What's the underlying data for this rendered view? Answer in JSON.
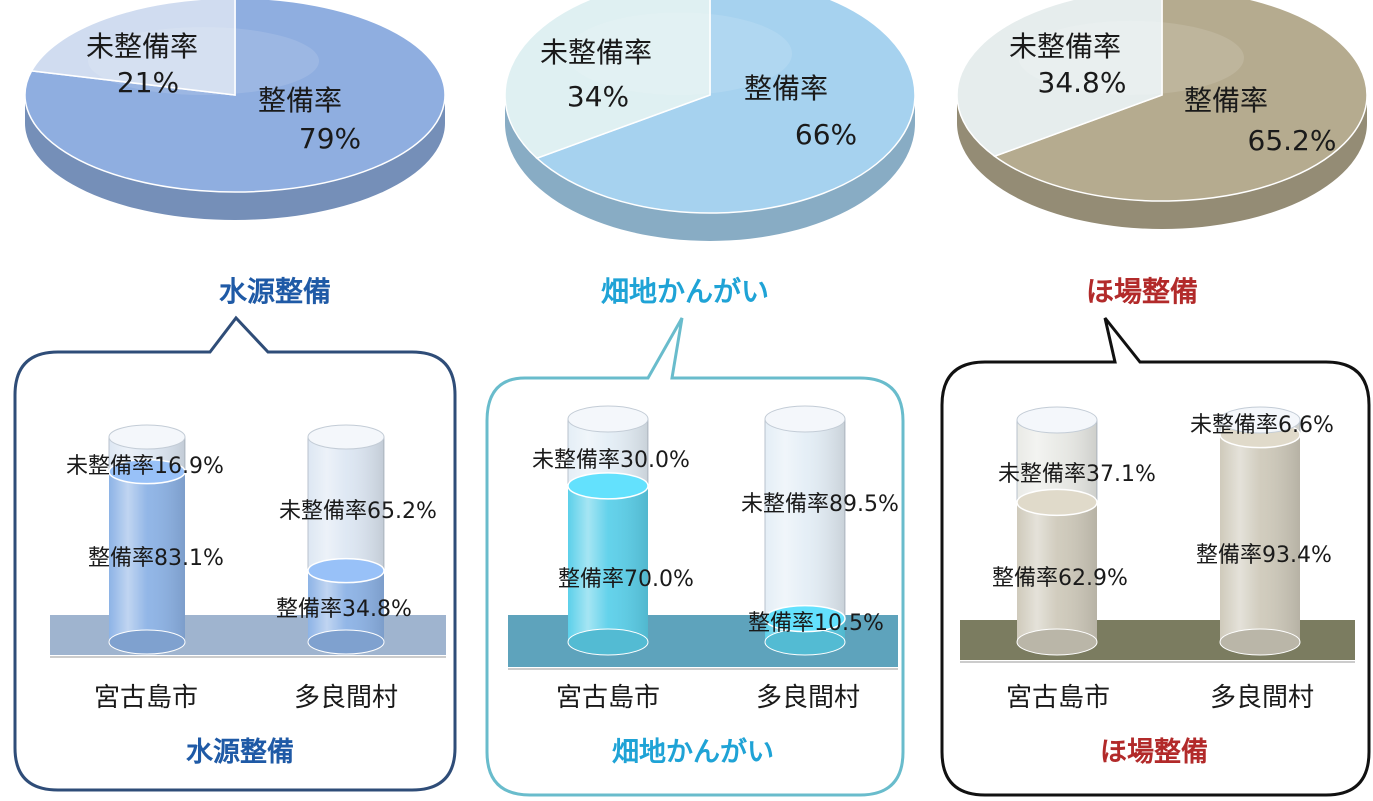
{
  "chart_data": [
    {
      "type": "pie",
      "title": "水源整備",
      "slices": [
        {
          "label": "整備率",
          "value": 79,
          "value_label": "79%"
        },
        {
          "label": "未整備率",
          "value": 21,
          "value_label": "21%"
        }
      ],
      "colors": {
        "main": "#8faee0",
        "rest": "#c9d7ee",
        "title": "#1f5aa6"
      }
    },
    {
      "type": "pie",
      "title": "畑地かんがい",
      "slices": [
        {
          "label": "整備率",
          "value": 66,
          "value_label": "66%"
        },
        {
          "label": "未整備率",
          "value": 34,
          "value_label": "34%"
        }
      ],
      "colors": {
        "main": "#a6d2ef",
        "rest": "#dbeef0",
        "title": "#1fa3d6"
      }
    },
    {
      "type": "pie",
      "title": "ほ場整備",
      "slices": [
        {
          "label": "整備率",
          "value": 65.2,
          "value_label": "65.2%"
        },
        {
          "label": "未整備率",
          "value": 34.8,
          "value_label": "34.8%"
        }
      ],
      "colors": {
        "main": "#b5ab8f",
        "rest": "#e3eaea",
        "title": "#b22a2a"
      }
    },
    {
      "type": "bar",
      "subtype": "stacked-cylinder",
      "title": "水源整備",
      "categories": [
        "宮古島市",
        "多良間村"
      ],
      "series": [
        {
          "name": "整備率",
          "values": [
            83.1,
            34.8
          ],
          "labels": [
            "整備率83.1%",
            "整備率34.8%"
          ]
        },
        {
          "name": "未整備率",
          "values": [
            16.9,
            65.2
          ],
          "labels": [
            "未整備率16.9%",
            "未整備率65.2%"
          ]
        }
      ],
      "ylim": [
        0,
        100
      ],
      "colors": {
        "filled": "#8db3e6",
        "empty": "#dde7f3",
        "floor": "#9fb4cf",
        "frame": "#2f4d78",
        "title": "#1f5aa6"
      }
    },
    {
      "type": "bar",
      "subtype": "stacked-cylinder",
      "title": "畑地かんがい",
      "categories": [
        "宮古島市",
        "多良間村"
      ],
      "series": [
        {
          "name": "整備率",
          "values": [
            70.0,
            10.5
          ],
          "labels": [
            "整備率70.0%",
            "整備率10.5%"
          ]
        },
        {
          "name": "未整備率",
          "values": [
            30.0,
            89.5
          ],
          "labels": [
            "未整備率30.0%",
            "未整備率89.5%"
          ]
        }
      ],
      "ylim": [
        0,
        100
      ],
      "colors": {
        "filled": "#5cd0ea",
        "empty": "#e4eef6",
        "floor": "#5ea3bc",
        "frame": "#69bccc",
        "title": "#1fa3d6"
      }
    },
    {
      "type": "bar",
      "subtype": "stacked-cylinder",
      "title": "ほ場整備",
      "categories": [
        "宮古島市",
        "多良間村"
      ],
      "series": [
        {
          "name": "整備率",
          "values": [
            62.9,
            93.4
          ],
          "labels": [
            "整備率62.9%",
            "整備率93.4%"
          ]
        },
        {
          "name": "未整備率",
          "values": [
            37.1,
            6.6
          ],
          "labels": [
            "未整備率37.1%",
            "未整備率6.6%"
          ]
        }
      ],
      "ylim": [
        0,
        100
      ],
      "colors": {
        "filled": "#cfcabb",
        "empty": "#e9eae6",
        "floor": "#7b7c60",
        "frame": "#111111",
        "title": "#b22a2a"
      }
    }
  ]
}
